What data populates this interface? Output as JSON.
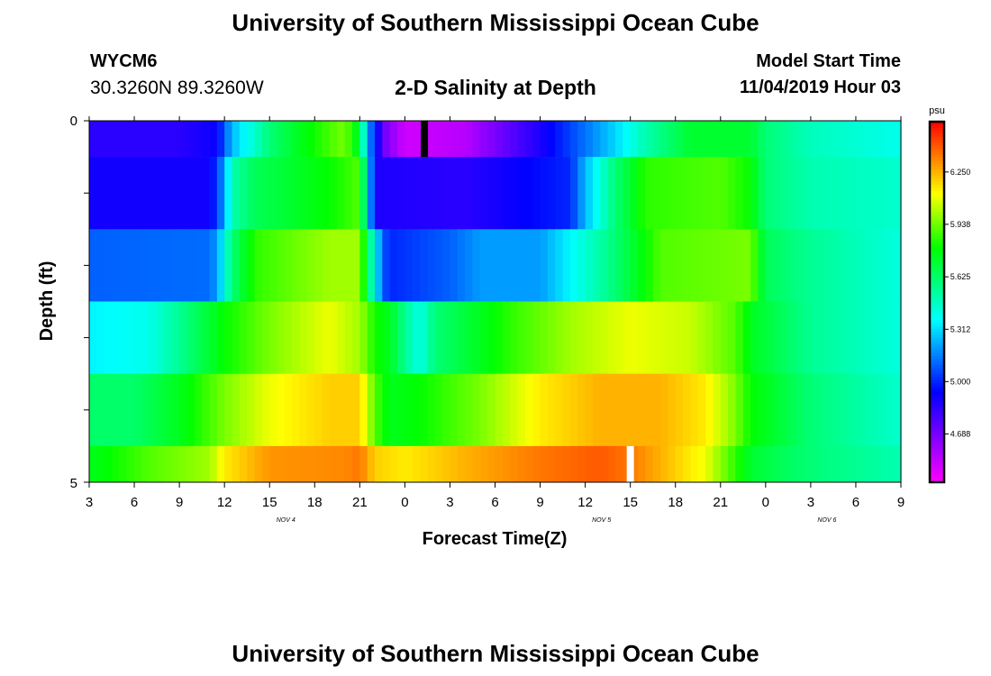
{
  "page": {
    "title_top": "University of Southern Mississippi Ocean Cube",
    "title_bottom": "University of Southern Mississippi Ocean Cube",
    "station_id": "WYCM6",
    "coordinates": "30.3260N 89.3260W",
    "plot_title": "2-D Salinity at Depth",
    "model_start_label": "Model Start Time",
    "model_start_value": "11/04/2019 Hour 03"
  },
  "chart_data": {
    "type": "heatmap",
    "title": "2-D Salinity at Depth",
    "xlabel": "Forecast Time(Z)",
    "ylabel": "Depth (ft)",
    "y_tick_labels": [
      "0",
      "5"
    ],
    "ylim": [
      0,
      5
    ],
    "x_tick_labels": [
      "3",
      "6",
      "9",
      "12",
      "15",
      "18",
      "21",
      "0",
      "3",
      "6",
      "9",
      "12",
      "15",
      "18",
      "21",
      "0",
      "3",
      "6",
      "9"
    ],
    "xlim_hours_from_start": [
      0,
      54
    ],
    "date_labels": [
      {
        "label": "NOV 4",
        "hour": 12
      },
      {
        "label": "NOV 5",
        "hour": 33
      },
      {
        "label": "NOV 6",
        "hour": 48
      }
    ],
    "colorbar": {
      "unit": "psu",
      "tick_labels": [
        "6.250",
        "5.938",
        "5.625",
        "5.312",
        "5.000",
        "4.688"
      ],
      "tick_values": [
        6.25,
        5.938,
        5.625,
        5.312,
        5.0,
        4.688
      ],
      "range": [
        4.4,
        6.55
      ]
    },
    "depth_layers": [
      "0-0.5",
      "0.5-1.5",
      "1.5-2.5",
      "2.5-3.5",
      "3.5-4.5",
      "4.5-5"
    ],
    "layer_keypoints": [
      [
        [
          0,
          4.85
        ],
        [
          6,
          4.85
        ],
        [
          8.5,
          4.92
        ],
        [
          9.5,
          5.25
        ],
        [
          11,
          5.45
        ],
        [
          12,
          5.6
        ],
        [
          14,
          5.75
        ],
        [
          17,
          5.95
        ],
        [
          18,
          5.7
        ],
        [
          18.6,
          5.15
        ],
        [
          19,
          5.05
        ],
        [
          19.5,
          4.72
        ],
        [
          21,
          4.5
        ],
        [
          25,
          4.55
        ],
        [
          30,
          4.88
        ],
        [
          35,
          5.3
        ],
        [
          37,
          5.5
        ],
        [
          40,
          5.72
        ],
        [
          44,
          5.72
        ],
        [
          45,
          5.6
        ],
        [
          48,
          5.48
        ],
        [
          54,
          5.4
        ]
      ],
      [
        [
          0,
          4.9
        ],
        [
          8,
          4.9
        ],
        [
          9,
          5.2
        ],
        [
          9.5,
          5.5
        ],
        [
          11,
          5.65
        ],
        [
          16,
          5.8
        ],
        [
          18,
          5.9
        ],
        [
          19,
          4.88
        ],
        [
          25,
          4.85
        ],
        [
          32,
          5.0
        ],
        [
          33,
          5.25
        ],
        [
          35,
          5.6
        ],
        [
          37,
          5.85
        ],
        [
          42,
          5.9
        ],
        [
          44,
          5.8
        ],
        [
          45,
          5.6
        ],
        [
          48,
          5.5
        ],
        [
          54,
          5.45
        ]
      ],
      [
        [
          0,
          5.1
        ],
        [
          8,
          5.12
        ],
        [
          8.5,
          5.2
        ],
        [
          9.5,
          5.6
        ],
        [
          11,
          5.85
        ],
        [
          16,
          6.0
        ],
        [
          18,
          6.0
        ],
        [
          18.6,
          5.6
        ],
        [
          19,
          5.4
        ],
        [
          19.5,
          5.1
        ],
        [
          20,
          5.0
        ],
        [
          24,
          5.1
        ],
        [
          26,
          5.2
        ],
        [
          30,
          5.2
        ],
        [
          35,
          5.6
        ],
        [
          38,
          5.9
        ],
        [
          44,
          5.95
        ],
        [
          45,
          5.65
        ],
        [
          48,
          5.55
        ],
        [
          54,
          5.42
        ]
      ],
      [
        [
          0,
          5.35
        ],
        [
          4,
          5.4
        ],
        [
          6,
          5.55
        ],
        [
          9,
          5.8
        ],
        [
          12,
          5.95
        ],
        [
          16,
          6.1
        ],
        [
          18,
          6.0
        ],
        [
          19,
          5.82
        ],
        [
          20,
          5.75
        ],
        [
          21,
          5.55
        ],
        [
          22,
          5.4
        ],
        [
          23,
          5.6
        ],
        [
          25,
          5.7
        ],
        [
          28,
          5.85
        ],
        [
          32,
          6.0
        ],
        [
          36,
          6.1
        ],
        [
          40,
          6.05
        ],
        [
          43,
          5.9
        ],
        [
          44,
          5.75
        ],
        [
          46,
          5.65
        ],
        [
          48,
          5.55
        ],
        [
          54,
          5.42
        ]
      ],
      [
        [
          0,
          5.62
        ],
        [
          3,
          5.62
        ],
        [
          6,
          5.75
        ],
        [
          9,
          5.95
        ],
        [
          12,
          6.1
        ],
        [
          16,
          6.2
        ],
        [
          18,
          6.2
        ],
        [
          19,
          5.9
        ],
        [
          20,
          5.75
        ],
        [
          22,
          5.8
        ],
        [
          26,
          5.95
        ],
        [
          30,
          6.15
        ],
        [
          34,
          6.25
        ],
        [
          38,
          6.25
        ],
        [
          41,
          6.15
        ],
        [
          43,
          5.95
        ],
        [
          44,
          5.8
        ],
        [
          46,
          5.7
        ],
        [
          48,
          5.6
        ],
        [
          54,
          5.45
        ]
      ],
      [
        [
          0,
          5.75
        ],
        [
          4,
          5.9
        ],
        [
          8,
          6.0
        ],
        [
          9,
          6.15
        ],
        [
          12,
          6.3
        ],
        [
          17,
          6.32
        ],
        [
          18,
          6.35
        ],
        [
          19,
          6.2
        ],
        [
          21,
          6.15
        ],
        [
          25,
          6.25
        ],
        [
          30,
          6.35
        ],
        [
          34,
          6.4
        ],
        [
          36,
          6.35
        ],
        [
          38,
          6.25
        ],
        [
          41,
          6.1
        ],
        [
          43,
          5.85
        ],
        [
          44,
          5.72
        ],
        [
          46,
          5.65
        ],
        [
          48,
          5.6
        ],
        [
          54,
          5.5
        ]
      ]
    ],
    "missing_data_markers": [
      {
        "layer": "0-0.5",
        "hour": 22.3,
        "color": "#000000"
      },
      {
        "layer": "4.5-5",
        "hour": 36,
        "color": "#ffffff"
      }
    ]
  }
}
